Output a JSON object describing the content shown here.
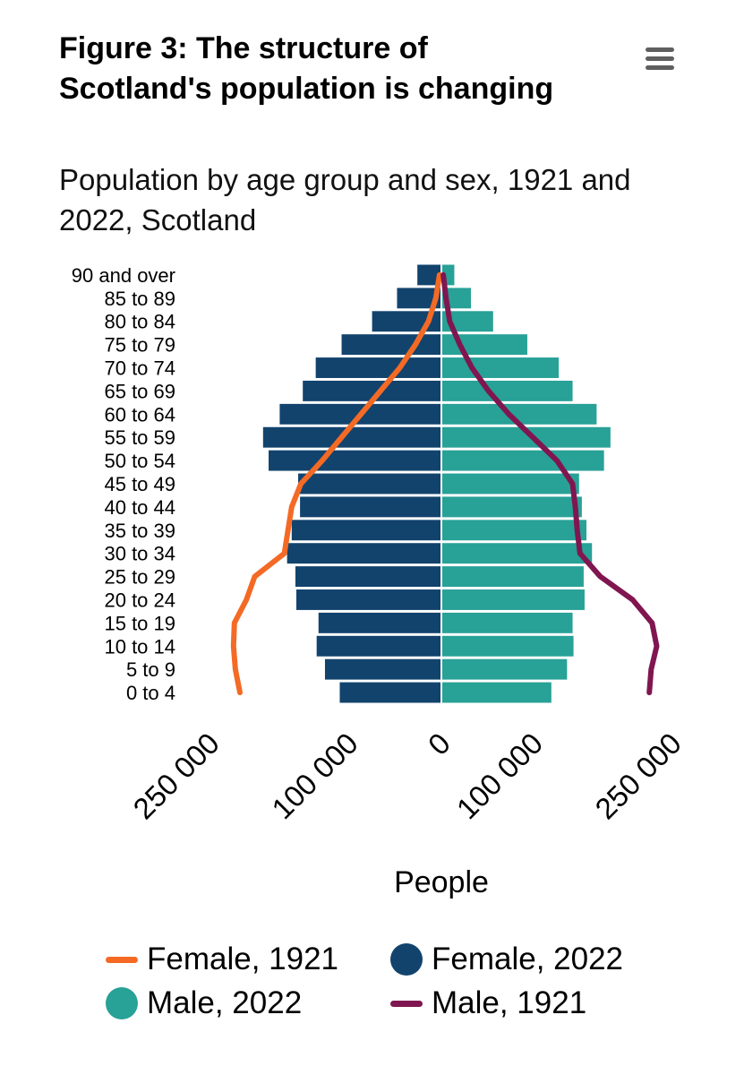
{
  "title": "Figure 3: The structure of Scotland's population is changing",
  "subtitle": "Population by age group and sex, 1921 and 2022, Scotland",
  "menu_icon": "hamburger-menu-icon",
  "chart_data": {
    "type": "bar",
    "orientation": "horizontal-pyramid",
    "categories": [
      "90 and over",
      "85 to 89",
      "80 to 84",
      "75 to 79",
      "70 to 74",
      "65 to 69",
      "60 to 64",
      "55 to 59",
      "50 to 54",
      "45 to 49",
      "40 to 44",
      "35 to 39",
      "30 to 34",
      "25 to 29",
      "20 to 24",
      "15 to 19",
      "10 to 14",
      "5 to 9",
      "0 to 4"
    ],
    "series": [
      {
        "name": "Female, 2022",
        "kind": "bar",
        "side": "left",
        "color": "#12436d",
        "values": [
          26000,
          48000,
          75000,
          108000,
          136000,
          150000,
          175000,
          193000,
          187000,
          155000,
          153000,
          162000,
          167000,
          158000,
          157000,
          133000,
          135000,
          126000,
          110000
        ]
      },
      {
        "name": "Male, 2022",
        "kind": "bar",
        "side": "right",
        "color": "#28a197",
        "values": [
          14000,
          32000,
          56000,
          93000,
          127000,
          142000,
          168000,
          183000,
          176000,
          149000,
          152000,
          157000,
          163000,
          154000,
          155000,
          142000,
          143000,
          136000,
          119000
        ]
      },
      {
        "name": "Female, 1921",
        "kind": "line",
        "side": "left",
        "color": "#f46a25",
        "values": [
          2000,
          6000,
          14000,
          28000,
          45000,
          66000,
          87000,
          108000,
          129000,
          152000,
          162000,
          166000,
          170000,
          202000,
          211000,
          224000,
          225000,
          223000,
          218000
        ]
      },
      {
        "name": "Male, 1921",
        "kind": "line",
        "side": "right",
        "color": "#801650",
        "values": [
          2000,
          5000,
          9000,
          20000,
          33000,
          51000,
          73000,
          99000,
          125000,
          142000,
          145000,
          147000,
          150000,
          172000,
          207000,
          228000,
          233000,
          227000,
          225000
        ]
      }
    ],
    "xlabel": "People",
    "xticks": [
      {
        "label": "250 000",
        "value": -250000
      },
      {
        "label": "100 000",
        "value": -100000
      },
      {
        "label": "0",
        "value": 0
      },
      {
        "label": "100 000",
        "value": 100000
      },
      {
        "label": "250 000",
        "value": 250000
      }
    ],
    "xlim": [
      -250000,
      250000
    ],
    "legend_position": "bottom",
    "legend_order": [
      "Female, 1921",
      "Female, 2022",
      "Male, 2022",
      "Male, 1921"
    ]
  }
}
